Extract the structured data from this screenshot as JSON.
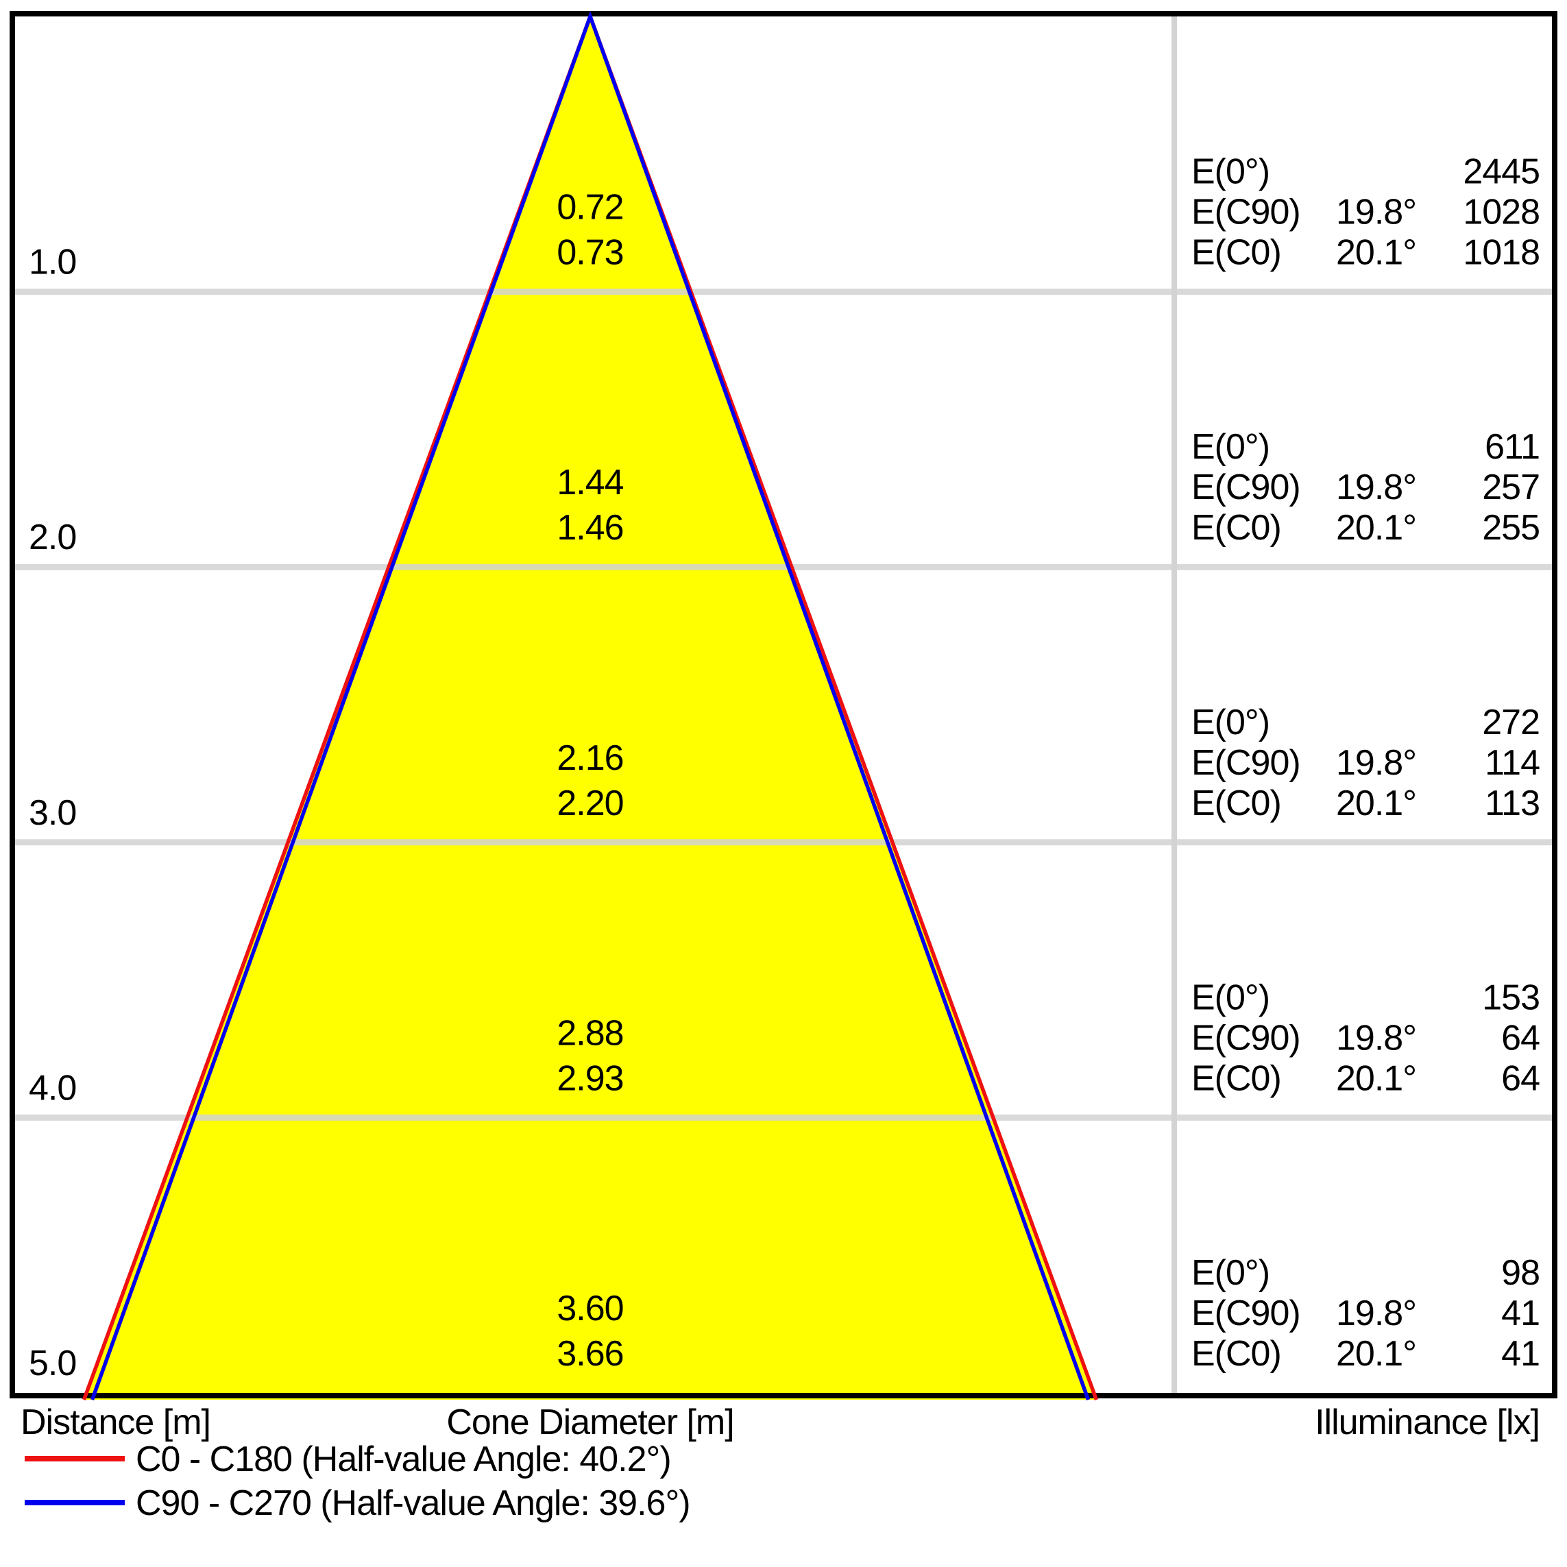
{
  "colors": {
    "cone_fill": "#ffff00",
    "c0": "#ee1111",
    "c90": "#0000ee",
    "grid": "#d3d3d3",
    "border": "#000000",
    "text": "#000000"
  },
  "e_labels": {
    "e0": "E(0°)",
    "ec90": "E(C90)",
    "ec0": "E(C0)"
  },
  "rows": [
    {
      "distance": "1.0",
      "c90_diameter": "0.72",
      "c0_diameter": "0.73",
      "e0_value": "2445",
      "ec90_angle": "19.8°",
      "ec90_value": "1028",
      "ec0_angle": "20.1°",
      "ec0_value": "1018"
    },
    {
      "distance": "2.0",
      "c90_diameter": "1.44",
      "c0_diameter": "1.46",
      "e0_value": "611",
      "ec90_angle": "19.8°",
      "ec90_value": "257",
      "ec0_angle": "20.1°",
      "ec0_value": "255"
    },
    {
      "distance": "3.0",
      "c90_diameter": "2.16",
      "c0_diameter": "2.20",
      "e0_value": "272",
      "ec90_angle": "19.8°",
      "ec90_value": "114",
      "ec0_angle": "20.1°",
      "ec0_value": "113"
    },
    {
      "distance": "4.0",
      "c90_diameter": "2.88",
      "c0_diameter": "2.93",
      "e0_value": "153",
      "ec90_angle": "19.8°",
      "ec90_value": "64",
      "ec0_angle": "20.1°",
      "ec0_value": "64"
    },
    {
      "distance": "5.0",
      "c90_diameter": "3.60",
      "c0_diameter": "3.66",
      "e0_value": "98",
      "ec90_angle": "19.8°",
      "ec90_value": "41",
      "ec0_angle": "20.1°",
      "ec0_value": "41"
    }
  ],
  "footer": {
    "distance": "Distance [m]",
    "cone_diameter": "Cone Diameter [m]",
    "illuminance": "Illuminance [lx]"
  },
  "legend": [
    {
      "label": "C0 - C180 (Half-value Angle: 40.2°)",
      "color": "#ee1111"
    },
    {
      "label": "C90 - C270 (Half-value Angle: 39.6°)",
      "color": "#0000ee"
    }
  ],
  "chart_data": {
    "type": "cone-diagram",
    "distances_m": [
      1.0,
      2.0,
      3.0,
      4.0,
      5.0
    ],
    "cone_diameter_c90_c270_m": [
      0.72,
      1.44,
      2.16,
      2.88,
      3.6
    ],
    "cone_diameter_c0_c180_m": [
      0.73,
      1.46,
      2.2,
      2.93,
      3.66
    ],
    "illuminance_E0_lx": [
      2445,
      611,
      272,
      153,
      98
    ],
    "illuminance_EC90_lx": [
      1028,
      257,
      114,
      64,
      41
    ],
    "illuminance_EC0_lx": [
      1018,
      255,
      113,
      64,
      41
    ],
    "EC90_angle_deg": 19.8,
    "EC0_angle_deg": 20.1,
    "half_value_angle_C0_C180_deg": 40.2,
    "half_value_angle_C90_C270_deg": 39.6,
    "xlabel": "Cone Diameter [m]",
    "ylabel": "Distance [m]",
    "value_label": "Illuminance [lx]",
    "legend_position": "bottom-left",
    "grid": true
  }
}
